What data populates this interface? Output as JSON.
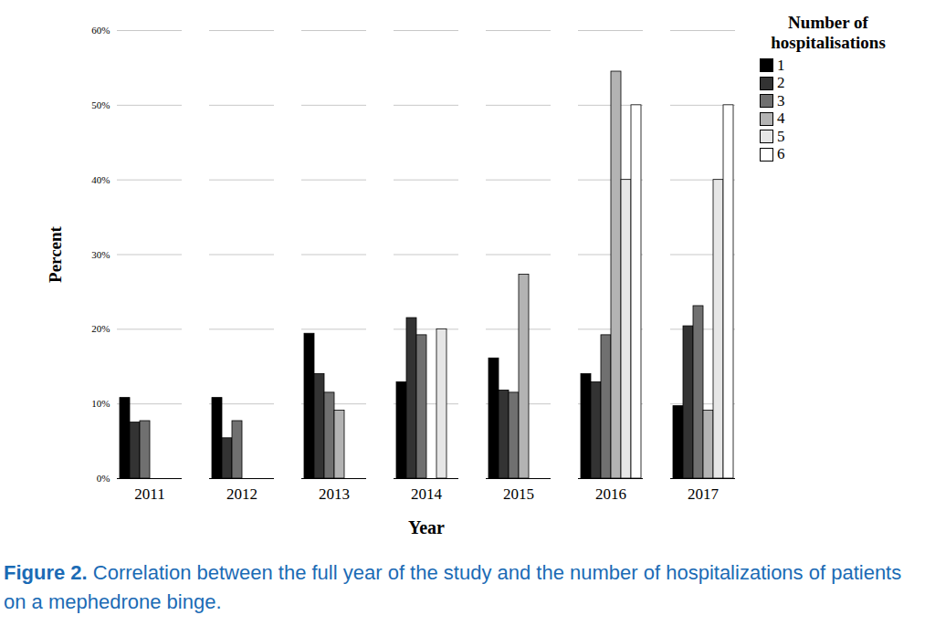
{
  "chart_data": {
    "type": "bar",
    "caption": "Figure 2. Correlation between the full year of the study and the number of hospitalizations of patients on a mephedrone binge.",
    "x_label": "Year",
    "y_label": "Percent",
    "legend_title": "Number of hospitalisations",
    "legend": "top-right",
    "grid": true,
    "categories": [
      "2011",
      "2012",
      "2013",
      "2014",
      "2015",
      "2016",
      "2017"
    ],
    "series": [
      {
        "name": "1",
        "color": "#000000",
        "values": [
          10.8,
          10.8,
          19.4,
          12.9,
          16.1,
          14.0,
          9.7
        ]
      },
      {
        "name": "2",
        "color": "#333333",
        "values": [
          7.5,
          5.4,
          14.0,
          21.5,
          11.8,
          12.9,
          20.4
        ]
      },
      {
        "name": "3",
        "color": "#707070",
        "values": [
          7.7,
          7.7,
          11.5,
          19.2,
          11.5,
          19.2,
          23.1
        ]
      },
      {
        "name": "4",
        "color": "#b3b3b3",
        "values": [
          0,
          0,
          9.1,
          0,
          27.3,
          54.5,
          9.1
        ]
      },
      {
        "name": "5",
        "color": "#e6e6e6",
        "values": [
          0,
          0,
          0,
          20,
          0,
          40,
          40
        ]
      },
      {
        "name": "6",
        "color": "#ffffff",
        "values": [
          0,
          0,
          0,
          0,
          0,
          50,
          50
        ]
      }
    ],
    "ylim": [
      0,
      60
    ],
    "yticks": [
      {
        "value": 0,
        "label": "0%"
      },
      {
        "value": 10,
        "label": "10%"
      },
      {
        "value": 20,
        "label": "20%"
      },
      {
        "value": 30,
        "label": "30%"
      },
      {
        "value": 40,
        "label": "40%"
      },
      {
        "value": 50,
        "label": "50%"
      },
      {
        "value": 60,
        "label": "60%"
      }
    ]
  }
}
